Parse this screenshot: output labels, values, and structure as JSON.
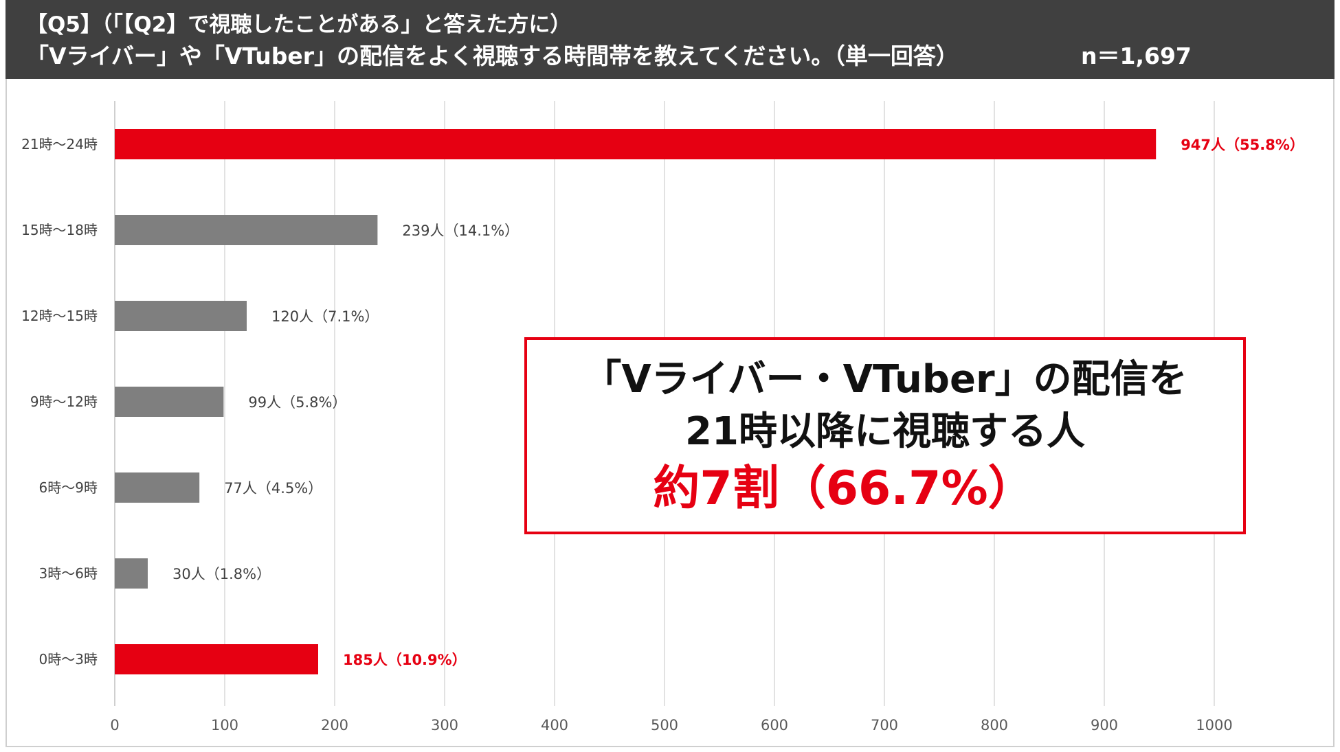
{
  "header": {
    "line1": "【Q5】（「【Q2】で視聴したことがある」と答えた方に）",
    "line2": "「Vライバー」や「VTuber」の配信をよく視聴する時間帯を教えてください。（単一回答）",
    "n_label": "n＝1,697"
  },
  "callout": {
    "line1": "「Vライバー・VTuber」の配信を",
    "line2": "21時以降に視聴する人",
    "line3": "約7割（66.7%）"
  },
  "colors": {
    "highlight": "#e60012",
    "default_bar": "#7f7f7f"
  },
  "chart_data": {
    "type": "bar",
    "orientation": "horizontal",
    "categories": [
      "21時～24時",
      "15時～18時",
      "12時～15時",
      "9時～12時",
      "6時～9時",
      "3時～6時",
      "0時～3時"
    ],
    "values": [
      947,
      239,
      120,
      99,
      77,
      30,
      185
    ],
    "data_labels": [
      "947人（55.8%）",
      "239人（14.1%）",
      "120人（7.1%）",
      "99人（5.8%）",
      "77人（4.5%）",
      "30人（1.8%）",
      "185人（10.9%）"
    ],
    "highlighted": [
      true,
      false,
      false,
      false,
      false,
      false,
      true
    ],
    "xlim": [
      0,
      1000
    ],
    "xticks": [
      0,
      100,
      200,
      300,
      400,
      500,
      600,
      700,
      800,
      900,
      1000
    ],
    "grid": true,
    "legend": "none"
  }
}
